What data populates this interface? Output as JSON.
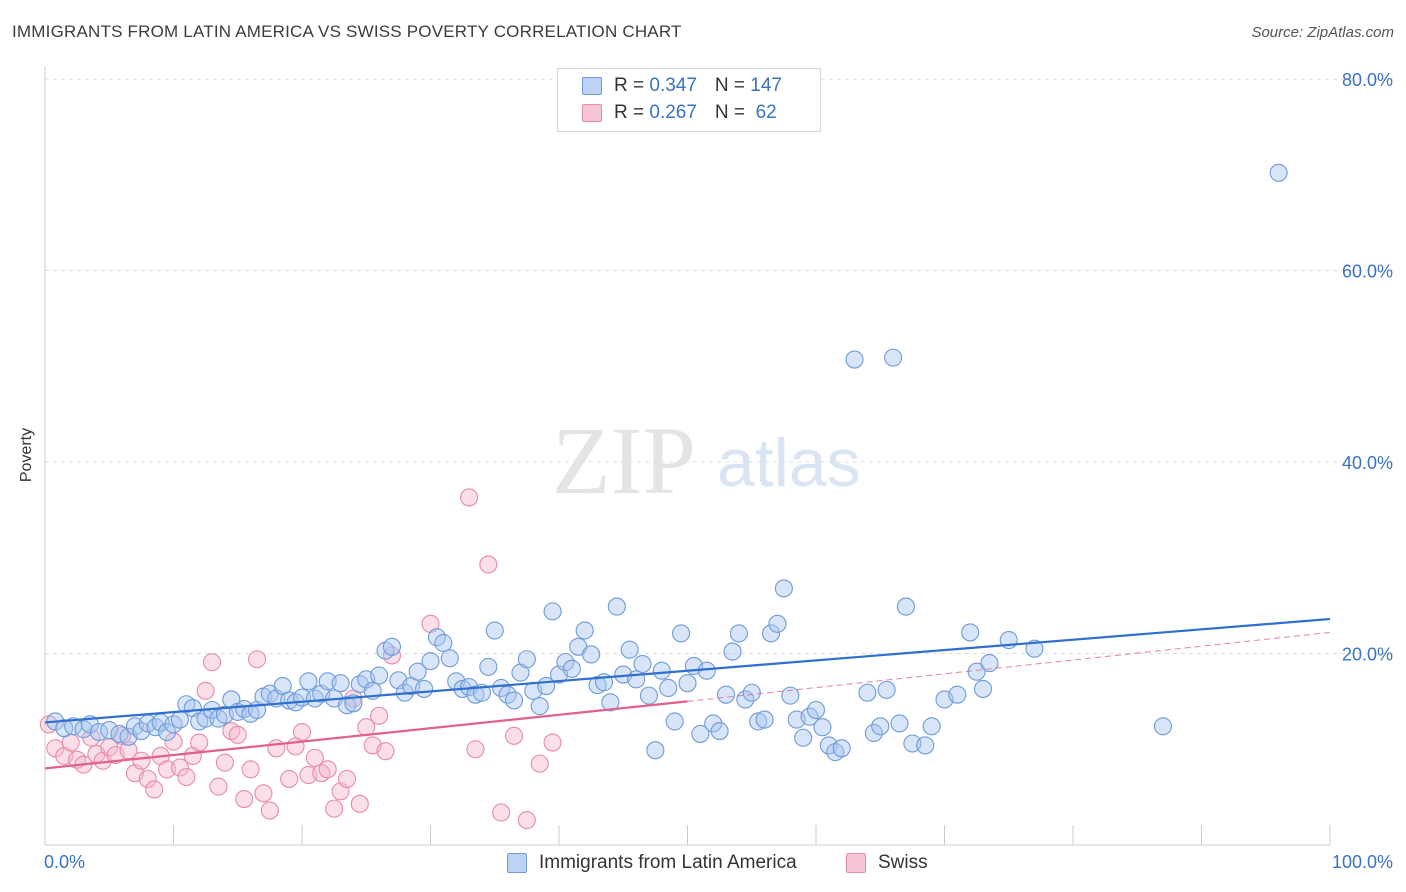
{
  "header": {
    "title": "IMMIGRANTS FROM LATIN AMERICA VS SWISS POVERTY CORRELATION CHART",
    "source": "Source: ZipAtlas.com"
  },
  "watermark": {
    "zip": "ZIP",
    "atlas": "atlas"
  },
  "colors": {
    "blue_fill": "#a9c6ef",
    "blue_stroke": "#6f9bd8",
    "blue_line": "#2f6fcf",
    "pink_fill": "#f5b8cc",
    "pink_stroke": "#e98aaa",
    "pink_line": "#e0608e",
    "axis_label": "#3a72c4",
    "grid": "#dddddd"
  },
  "legend_top": {
    "rows": [
      {
        "r_label": "R = ",
        "r_value": "0.347",
        "n_label": "N = ",
        "n_value": "147"
      },
      {
        "r_label": "R = ",
        "r_value": "0.267",
        "n_label": "N = ",
        "n_value": " 62"
      }
    ]
  },
  "legend_bottom": {
    "items": [
      "Immigrants from Latin America",
      "Swiss"
    ]
  },
  "chart_data": {
    "type": "scatter",
    "title": "IMMIGRANTS FROM LATIN AMERICA VS SWISS POVERTY CORRELATION CHART",
    "xlabel": "",
    "ylabel": "Poverty",
    "xlim": [
      0,
      100
    ],
    "ylim": [
      0,
      80
    ],
    "x_tick_labels": [
      "0.0%",
      "100.0%"
    ],
    "y_tick_labels": [
      "20.0%",
      "40.0%",
      "60.0%",
      "80.0%"
    ],
    "y_ticks": [
      20,
      40,
      60,
      80
    ],
    "grid": "horizontal dashed",
    "legend_placement": "bottom-center",
    "series": [
      {
        "name": "Immigrants from Latin America",
        "r": 0.347,
        "n": 147,
        "trend": {
          "x": [
            0,
            100
          ],
          "y": [
            12.8,
            23.6
          ]
        },
        "points": [
          [
            0.8,
            12.9
          ],
          [
            1.5,
            12.2
          ],
          [
            2.2,
            12.4
          ],
          [
            3,
            12.1
          ],
          [
            3.5,
            12.6
          ],
          [
            4.2,
            11.8
          ],
          [
            5,
            12
          ],
          [
            5.8,
            11.6
          ],
          [
            6.5,
            11.3
          ],
          [
            7,
            12.4
          ],
          [
            7.5,
            11.9
          ],
          [
            8,
            12.7
          ],
          [
            8.6,
            12.3
          ],
          [
            9,
            12.8
          ],
          [
            9.5,
            11.8
          ],
          [
            10,
            12.6
          ],
          [
            10.5,
            13.1
          ],
          [
            11,
            14.7
          ],
          [
            11.5,
            14.3
          ],
          [
            12,
            12.9
          ],
          [
            12.5,
            13.2
          ],
          [
            13,
            14.1
          ],
          [
            13.5,
            13.2
          ],
          [
            14,
            13.6
          ],
          [
            14.5,
            15.2
          ],
          [
            15,
            13.9
          ],
          [
            15.5,
            14.2
          ],
          [
            16,
            13.7
          ],
          [
            16.5,
            14.1
          ],
          [
            17,
            15.5
          ],
          [
            17.5,
            15.8
          ],
          [
            18,
            15.3
          ],
          [
            18.5,
            16.6
          ],
          [
            19,
            15.1
          ],
          [
            19.5,
            14.9
          ],
          [
            20,
            15.4
          ],
          [
            20.5,
            17.1
          ],
          [
            21,
            15.3
          ],
          [
            21.5,
            15.8
          ],
          [
            22,
            17.1
          ],
          [
            22.5,
            15.3
          ],
          [
            23,
            16.9
          ],
          [
            23.5,
            14.6
          ],
          [
            24,
            14.8
          ],
          [
            24.5,
            16.8
          ],
          [
            25,
            17.3
          ],
          [
            25.5,
            16.1
          ],
          [
            26,
            17.7
          ],
          [
            26.5,
            20.3
          ],
          [
            27,
            20.7
          ],
          [
            27.5,
            17.2
          ],
          [
            28,
            15.9
          ],
          [
            28.5,
            16.6
          ],
          [
            29,
            18.1
          ],
          [
            29.5,
            16.3
          ],
          [
            30,
            19.2
          ],
          [
            30.5,
            21.7
          ],
          [
            31,
            21.1
          ],
          [
            31.5,
            19.5
          ],
          [
            32,
            17.1
          ],
          [
            32.5,
            16.3
          ],
          [
            33,
            16.5
          ],
          [
            33.5,
            15.7
          ],
          [
            34,
            15.9
          ],
          [
            34.5,
            18.6
          ],
          [
            35,
            22.4
          ],
          [
            35.5,
            16.4
          ],
          [
            36,
            15.7
          ],
          [
            36.5,
            15.1
          ],
          [
            37,
            18
          ],
          [
            37.5,
            19.4
          ],
          [
            38,
            16.1
          ],
          [
            38.5,
            14.5
          ],
          [
            39,
            16.6
          ],
          [
            39.5,
            24.4
          ],
          [
            40,
            17.8
          ],
          [
            40.5,
            19.1
          ],
          [
            41,
            18.4
          ],
          [
            41.5,
            20.7
          ],
          [
            42,
            22.4
          ],
          [
            42.5,
            19.9
          ],
          [
            43,
            16.7
          ],
          [
            43.5,
            17
          ],
          [
            44,
            14.9
          ],
          [
            44.5,
            24.9
          ],
          [
            45,
            17.8
          ],
          [
            45.5,
            20.4
          ],
          [
            46,
            17.3
          ],
          [
            46.5,
            18.9
          ],
          [
            47,
            15.6
          ],
          [
            47.5,
            9.9
          ],
          [
            48,
            18.2
          ],
          [
            48.5,
            16.4
          ],
          [
            49,
            12.9
          ],
          [
            49.5,
            22.1
          ],
          [
            50,
            16.9
          ],
          [
            50.5,
            18.7
          ],
          [
            51,
            11.6
          ],
          [
            51.5,
            18.2
          ],
          [
            52,
            12.7
          ],
          [
            52.5,
            11.9
          ],
          [
            53,
            15.7
          ],
          [
            53.5,
            20.2
          ],
          [
            54,
            22.1
          ],
          [
            54.5,
            15.2
          ],
          [
            55,
            15.9
          ],
          [
            55.5,
            12.9
          ],
          [
            56,
            13.1
          ],
          [
            56.5,
            22.1
          ],
          [
            57,
            23.1
          ],
          [
            57.5,
            26.8
          ],
          [
            58,
            15.6
          ],
          [
            58.5,
            13.1
          ],
          [
            59,
            11.2
          ],
          [
            59.5,
            13.4
          ],
          [
            60,
            14.1
          ],
          [
            60.5,
            12.3
          ],
          [
            61,
            10.4
          ],
          [
            61.5,
            9.7
          ],
          [
            62,
            10.1
          ],
          [
            63,
            50.7
          ],
          [
            64,
            15.9
          ],
          [
            64.5,
            11.7
          ],
          [
            65,
            12.4
          ],
          [
            65.5,
            16.2
          ],
          [
            66,
            50.9
          ],
          [
            66.5,
            12.7
          ],
          [
            67,
            24.9
          ],
          [
            67.5,
            10.6
          ],
          [
            68.5,
            10.4
          ],
          [
            69,
            12.4
          ],
          [
            70,
            15.2
          ],
          [
            71,
            15.7
          ],
          [
            72,
            22.2
          ],
          [
            72.5,
            18.1
          ],
          [
            73,
            16.3
          ],
          [
            73.5,
            19
          ],
          [
            75,
            21.4
          ],
          [
            77,
            20.5
          ],
          [
            87,
            12.4
          ],
          [
            96,
            70.2
          ]
        ]
      },
      {
        "name": "Swiss",
        "r": 0.267,
        "n": 62,
        "trend": {
          "x": [
            0,
            50
          ],
          "y": [
            8,
            15
          ],
          "dashed_to": {
            "x": 100,
            "y": 22.2
          }
        },
        "points": [
          [
            0.3,
            12.6
          ],
          [
            0.8,
            10.1
          ],
          [
            1.5,
            9.3
          ],
          [
            2,
            10.7
          ],
          [
            2.5,
            8.9
          ],
          [
            3,
            8.4
          ],
          [
            3.6,
            11.2
          ],
          [
            4,
            9.5
          ],
          [
            4.5,
            8.8
          ],
          [
            5,
            10.2
          ],
          [
            5.5,
            9.4
          ],
          [
            6,
            11.4
          ],
          [
            6.5,
            9.9
          ],
          [
            7,
            7.5
          ],
          [
            7.5,
            8.8
          ],
          [
            8,
            6.9
          ],
          [
            8.5,
            5.8
          ],
          [
            9,
            9.3
          ],
          [
            9.5,
            7.9
          ],
          [
            10,
            10.8
          ],
          [
            10.5,
            8.1
          ],
          [
            11,
            7.1
          ],
          [
            11.5,
            9.3
          ],
          [
            12,
            10.7
          ],
          [
            12.5,
            16.1
          ],
          [
            13,
            19.1
          ],
          [
            13.5,
            6.1
          ],
          [
            14,
            8.6
          ],
          [
            14.5,
            11.9
          ],
          [
            15,
            11.5
          ],
          [
            15.5,
            4.8
          ],
          [
            16,
            7.9
          ],
          [
            16.5,
            19.4
          ],
          [
            17,
            5.4
          ],
          [
            17.5,
            3.6
          ],
          [
            18,
            10.1
          ],
          [
            19,
            6.9
          ],
          [
            19.5,
            10.3
          ],
          [
            20,
            11.8
          ],
          [
            20.5,
            7.3
          ],
          [
            21,
            9.1
          ],
          [
            21.5,
            7.5
          ],
          [
            22,
            7.9
          ],
          [
            22.5,
            3.8
          ],
          [
            23,
            5.6
          ],
          [
            23.5,
            6.9
          ],
          [
            24,
            15.3
          ],
          [
            24.5,
            4.3
          ],
          [
            25,
            12.3
          ],
          [
            25.5,
            10.4
          ],
          [
            26,
            13.5
          ],
          [
            26.5,
            9.8
          ],
          [
            27,
            19.8
          ],
          [
            30,
            23.1
          ],
          [
            33,
            36.3
          ],
          [
            33.5,
            10
          ],
          [
            34.5,
            29.3
          ],
          [
            35.5,
            3.4
          ],
          [
            36.5,
            11.4
          ],
          [
            37.5,
            2.6
          ],
          [
            38.5,
            8.5
          ],
          [
            39.5,
            10.7
          ]
        ]
      }
    ]
  }
}
